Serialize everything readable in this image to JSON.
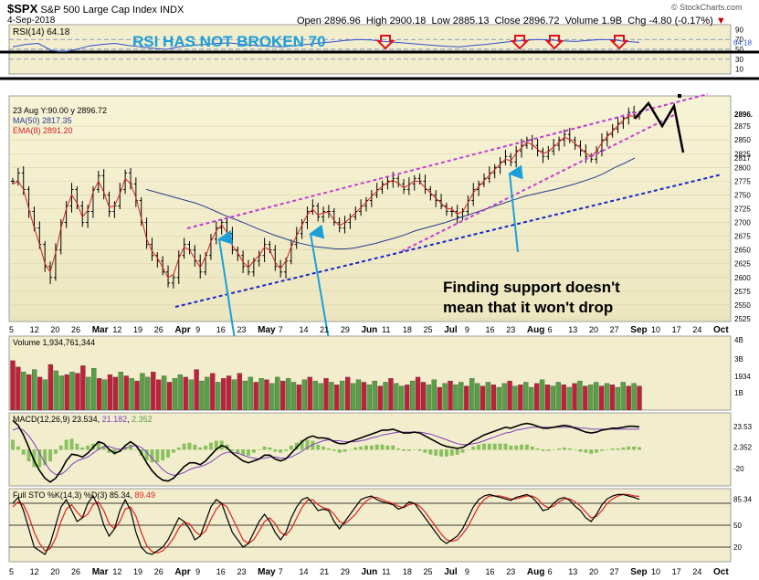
{
  "header": {
    "symbol": "$SPX",
    "name": "S&P 500 Large Cap Index",
    "exchange": "INDX",
    "date": "4-Sep-2018",
    "open_label": "Open",
    "open": "2896.96",
    "high_label": "High",
    "high": "2900.18",
    "low_label": "Low",
    "low": "2885.13",
    "close_label": "Close",
    "close": "2896.72",
    "volume_label": "Volume",
    "volume": "1.9B",
    "chg_label": "Chg",
    "chg": "-4.80 (-0.17%)",
    "chg_arrow": "▼",
    "watermark": "© StockCharts.com"
  },
  "colors": {
    "panel_bg": "#f2edcc",
    "price_bg_top": "#f7f3d6",
    "price_bg_bottom": "#ece6c0",
    "up": "#58a046",
    "down": "#c2203a",
    "ma50": "#2b3c8c",
    "ema8": "#d22222",
    "annotation_blue": "#1a9fd8",
    "annotation_red": "#e0101a",
    "channel_magenta": "#c040d0",
    "channel_blue": "#1a28c8",
    "rsi_line": "#3050d0",
    "macd_line": "#000000",
    "macd_signal": "#8040c0",
    "macd_hist": "#8ac060",
    "sto_k": "#000000",
    "sto_d": "#e02020"
  },
  "chart_data": {
    "type": "line",
    "x_axis": {
      "type": "date",
      "ticks": [
        "5",
        "12",
        "20",
        "26",
        "Mar",
        "12",
        "19",
        "26",
        "Apr",
        "9",
        "16",
        "23",
        "May",
        "7",
        "14",
        "21",
        "29",
        "Jun",
        "11",
        "18",
        "25",
        "Jul",
        "9",
        "16",
        "23",
        "Aug",
        "6",
        "13",
        "20",
        "27",
        "Sep",
        "10",
        "17",
        "24",
        "Oct"
      ]
    },
    "rsi": {
      "label": "RSI(14)",
      "value": "64.18",
      "ylim": [
        0,
        100
      ],
      "ticks": [
        "90",
        "70",
        "50",
        "30",
        "10"
      ],
      "value_label": "64.18",
      "series": [
        55,
        60,
        62,
        48,
        45,
        50,
        57,
        60,
        62,
        58,
        55,
        52,
        50,
        55,
        58,
        60,
        62,
        63,
        60,
        58,
        56,
        55,
        57,
        60,
        63,
        65,
        68,
        70,
        69,
        66,
        64,
        62,
        60,
        58,
        56,
        55,
        58,
        60,
        63,
        66,
        68,
        70,
        69,
        67,
        66,
        68,
        70,
        69,
        66,
        64
      ]
    },
    "price": {
      "label_date": "23 Aug Y:90.00 y",
      "label_price": "2896.72",
      "ma_label": "MA(50) 2817.35",
      "ema_label": "EMA(8) 2891.20",
      "ylim": [
        2520,
        2930
      ],
      "ticks": [
        "2896.",
        "2875",
        "2850",
        "2825",
        "2817",
        "2800",
        "2775",
        "2750",
        "2725",
        "2700",
        "2675",
        "2650",
        "2625",
        "2600",
        "2575",
        "2550",
        "2525"
      ],
      "closes": [
        2775,
        2790,
        2760,
        2720,
        2690,
        2660,
        2620,
        2600,
        2650,
        2700,
        2730,
        2760,
        2730,
        2700,
        2720,
        2760,
        2785,
        2750,
        2720,
        2730,
        2760,
        2790,
        2770,
        2740,
        2700,
        2660,
        2640,
        2630,
        2610,
        2590,
        2600,
        2640,
        2660,
        2650,
        2630,
        2610,
        2640,
        2670,
        2690,
        2700,
        2680,
        2650,
        2640,
        2620,
        2610,
        2630,
        2640,
        2660,
        2650,
        2620,
        2610,
        2630,
        2660,
        2680,
        2700,
        2720,
        2730,
        2710,
        2720,
        2720,
        2700,
        2690,
        2700,
        2710,
        2720,
        2730,
        2740,
        2750,
        2760,
        2770,
        2775,
        2780,
        2770,
        2760,
        2770,
        2780,
        2775,
        2760,
        2750,
        2740,
        2730,
        2720,
        2720,
        2710,
        2720,
        2740,
        2760,
        2770,
        2780,
        2790,
        2800,
        2810,
        2820,
        2810,
        2830,
        2840,
        2850,
        2840,
        2830,
        2820,
        2830,
        2840,
        2850,
        2860,
        2850,
        2840,
        2830,
        2820,
        2815,
        2830,
        2850,
        2860,
        2870,
        2880,
        2890,
        2900,
        2895,
        2897
      ],
      "ma50": [
        2760,
        2755,
        2750,
        2745,
        2740,
        2735,
        2728,
        2720,
        2712,
        2705,
        2698,
        2690,
        2683,
        2676,
        2670,
        2664,
        2660,
        2656,
        2654,
        2652,
        2652,
        2654,
        2658,
        2662,
        2667,
        2672,
        2678,
        2685,
        2690,
        2695,
        2700,
        2706,
        2712,
        2718,
        2724,
        2730,
        2736,
        2742,
        2748,
        2752,
        2756,
        2760,
        2765,
        2770,
        2776,
        2782,
        2790,
        2800,
        2808,
        2817
      ],
      "ema8": [
        2770,
        2775,
        2760,
        2725,
        2690,
        2660,
        2625,
        2610,
        2645,
        2690,
        2725,
        2750,
        2735,
        2710,
        2722,
        2755,
        2775,
        2755,
        2728,
        2730,
        2752,
        2780,
        2770,
        2745,
        2708,
        2670,
        2648,
        2636,
        2618,
        2600,
        2605,
        2635,
        2655,
        2650,
        2634,
        2618,
        2638,
        2665,
        2685,
        2696,
        2682,
        2658,
        2645,
        2628,
        2618,
        2630,
        2640,
        2655,
        2650,
        2628,
        2616,
        2630,
        2656,
        2676,
        2695,
        2714,
        2724,
        2713,
        2718,
        2719,
        2704,
        2694,
        2700,
        2708,
        2717,
        2727,
        2737,
        2747,
        2757,
        2766,
        2772,
        2777,
        2771,
        2763,
        2768,
        2776,
        2774,
        2763,
        2754,
        2744,
        2735,
        2726,
        2724,
        2715,
        2720,
        2736,
        2754,
        2765,
        2776,
        2786,
        2796,
        2806,
        2815,
        2812,
        2826,
        2836,
        2846,
        2841,
        2833,
        2825,
        2829,
        2837,
        2846,
        2855,
        2851,
        2843,
        2835,
        2826,
        2820,
        2829,
        2845,
        2856,
        2866,
        2876,
        2886,
        2894,
        2893,
        2891
      ]
    },
    "volume": {
      "label": "Volume 1,934,761,344",
      "ticks": [
        "4B",
        "3B",
        "1934",
        "1B"
      ],
      "ylim": [
        0,
        4.2
      ],
      "values": [
        3.9,
        3.4,
        3.0,
        2.8,
        3.2,
        2.6,
        2.4,
        3.6,
        3.1,
        2.7,
        2.8,
        3.0,
        2.9,
        3.5,
        2.6,
        3.3,
        2.5,
        2.4,
        2.8,
        2.6,
        3.0,
        2.7,
        2.5,
        2.3,
        2.9,
        2.6,
        3.0,
        2.4,
        2.7,
        2.2,
        2.5,
        2.8,
        2.6,
        2.4,
        3.2,
        2.3,
        2.6,
        2.9,
        2.2,
        2.5,
        2.7,
        2.4,
        2.9,
        2.3,
        2.6,
        2.2,
        2.5,
        2.4,
        2.1,
        2.6,
        2.3,
        2.5,
        2.2,
        2.0,
        2.4,
        2.6,
        2.3,
        2.1,
        2.5,
        2.2,
        2.0,
        2.3,
        2.6,
        2.1,
        2.4,
        2.2,
        2.0,
        2.3,
        1.9,
        2.2,
        2.5,
        2.1,
        1.9,
        2.0,
        2.3,
        2.6,
        2.2,
        2.0,
        2.4,
        1.8,
        2.1,
        2.3,
        2.0,
        2.2,
        1.9,
        2.5,
        2.1,
        1.9,
        2.2,
        2.0,
        1.8,
        2.1,
        2.3,
        1.9,
        2.0,
        2.2,
        1.8,
        2.1,
        2.4,
        2.0,
        1.9,
        2.2,
        2.0,
        1.8,
        2.1,
        2.3,
        1.9,
        2.0,
        2.2,
        1.9,
        2.1,
        2.0,
        1.8,
        2.2,
        1.9,
        2.1,
        1.9
      ],
      "up_flags": [
        0,
        0,
        1,
        0,
        1,
        0,
        1,
        0,
        1,
        1,
        0,
        1,
        0,
        0,
        1,
        1,
        0,
        1,
        0,
        0,
        1,
        0,
        1,
        0,
        1,
        1,
        0,
        0,
        1,
        0,
        1,
        1,
        0,
        1,
        0,
        1,
        1,
        0,
        1,
        0,
        0,
        1,
        0,
        1,
        1,
        0,
        1,
        0,
        1,
        1,
        0,
        1,
        1,
        0,
        1,
        0,
        1,
        1,
        0,
        1,
        0,
        1,
        0,
        1,
        1,
        0,
        1,
        1,
        0,
        1,
        0,
        1,
        1,
        0,
        1,
        0,
        0,
        1,
        1,
        0,
        1,
        0,
        1,
        1,
        0,
        1,
        1,
        0,
        1,
        0,
        1,
        1,
        0,
        1,
        0,
        1,
        1,
        0,
        1,
        0,
        1,
        1,
        0,
        1,
        0,
        1,
        0,
        1,
        1,
        0,
        1,
        0,
        1,
        1,
        0,
        1,
        0
      ]
    },
    "macd": {
      "label": "MACD(12,26,9)",
      "macd": "23.534",
      "signal": "21.182",
      "hist": "2.352",
      "ticks": [
        "23.53",
        "2.352",
        "-20"
      ],
      "ylim": [
        -38,
        38
      ],
      "macd_series": [
        30,
        25,
        15,
        2,
        -12,
        -22,
        -30,
        -34,
        -30,
        -22,
        -12,
        -5,
        -6,
        -8,
        -4,
        2,
        8,
        6,
        0,
        -4,
        -2,
        4,
        8,
        4,
        -4,
        -14,
        -22,
        -28,
        -32,
        -33,
        -30,
        -24,
        -18,
        -14,
        -14,
        -16,
        -12,
        -6,
        0,
        4,
        2,
        -4,
        -8,
        -12,
        -14,
        -12,
        -10,
        -6,
        -6,
        -10,
        -12,
        -10,
        -4,
        2,
        8,
        12,
        14,
        12,
        12,
        11,
        8,
        6,
        6,
        8,
        10,
        12,
        14,
        16,
        18,
        20,
        20,
        21,
        19,
        17,
        17,
        18,
        17,
        14,
        11,
        8,
        5,
        3,
        2,
        1,
        2,
        5,
        9,
        12,
        15,
        17,
        19,
        21,
        23,
        22,
        24,
        26,
        27,
        26,
        24,
        22,
        22,
        23,
        24,
        25,
        24,
        22,
        20,
        18,
        17,
        18,
        20,
        21,
        22,
        22,
        23,
        24,
        24,
        23.5
      ],
      "signal_series": [
        20,
        22,
        20,
        14,
        6,
        -4,
        -14,
        -22,
        -26,
        -26,
        -22,
        -16,
        -12,
        -10,
        -8,
        -4,
        0,
        3,
        3,
        1,
        0,
        1,
        3,
        4,
        2,
        -3,
        -9,
        -15,
        -21,
        -25,
        -27,
        -26,
        -24,
        -21,
        -19,
        -18,
        -16,
        -13,
        -9,
        -5,
        -3,
        -3,
        -4,
        -6,
        -8,
        -9,
        -10,
        -9,
        -8,
        -8,
        -9,
        -9,
        -8,
        -5,
        -2,
        2,
        5,
        7,
        9,
        10,
        9,
        9,
        8,
        8,
        8,
        9,
        10,
        12,
        13,
        15,
        16,
        17,
        18,
        18,
        18,
        18,
        18,
        17,
        16,
        14,
        12,
        10,
        8,
        6,
        5,
        5,
        6,
        7,
        9,
        11,
        13,
        15,
        17,
        18,
        20,
        21,
        22,
        23,
        23,
        23,
        23,
        23,
        23,
        23,
        23,
        23,
        22,
        22,
        21,
        21,
        21,
        21,
        21,
        21,
        21,
        21,
        21,
        21.2
      ],
      "hist_series": [
        10,
        3,
        -5,
        -12,
        -18,
        -18,
        -16,
        -12,
        -4,
        4,
        10,
        11,
        6,
        2,
        4,
        6,
        8,
        3,
        -3,
        -5,
        -2,
        3,
        5,
        0,
        -6,
        -11,
        -13,
        -13,
        -11,
        -8,
        -3,
        2,
        6,
        7,
        5,
        2,
        4,
        7,
        9,
        9,
        5,
        -1,
        -4,
        -6,
        -6,
        -3,
        0,
        3,
        2,
        -2,
        -3,
        -1,
        4,
        7,
        10,
        10,
        9,
        5,
        3,
        1,
        -1,
        -3,
        -2,
        0,
        2,
        3,
        4,
        4,
        5,
        5,
        4,
        4,
        1,
        -1,
        -1,
        0,
        -1,
        -3,
        -5,
        -6,
        -7,
        -7,
        -6,
        -5,
        -3,
        0,
        3,
        5,
        6,
        6,
        6,
        6,
        6,
        4,
        4,
        5,
        5,
        3,
        1,
        -1,
        -1,
        0,
        1,
        2,
        1,
        0,
        -2,
        -3,
        -4,
        -3,
        -1,
        0,
        1,
        1,
        2,
        3,
        3,
        2.35
      ]
    },
    "sto": {
      "label": "Full STO %K(14,3) %D(3)",
      "k": "85.34",
      "d": "89.49",
      "ticks": [
        "85.34",
        "50",
        "20"
      ],
      "ylim": [
        0,
        100
      ],
      "k_series": [
        80,
        88,
        70,
        45,
        20,
        15,
        10,
        25,
        50,
        75,
        85,
        70,
        55,
        60,
        80,
        90,
        75,
        50,
        35,
        45,
        70,
        85,
        70,
        40,
        20,
        12,
        10,
        15,
        20,
        30,
        45,
        60,
        55,
        45,
        30,
        35,
        55,
        75,
        85,
        80,
        60,
        40,
        30,
        20,
        25,
        40,
        55,
        65,
        55,
        40,
        30,
        40,
        60,
        75,
        85,
        88,
        80,
        70,
        72,
        70,
        55,
        45,
        55,
        65,
        75,
        85,
        88,
        90,
        85,
        82,
        80,
        78,
        72,
        75,
        82,
        80,
        70,
        60,
        50,
        40,
        30,
        25,
        30,
        35,
        45,
        60,
        75,
        85,
        90,
        92,
        90,
        88,
        86,
        84,
        88,
        90,
        92,
        88,
        80,
        70,
        72,
        80,
        86,
        88,
        84,
        76,
        70,
        60,
        55,
        65,
        78,
        86,
        90,
        92,
        92,
        90,
        88,
        85.34
      ],
      "d_series": [
        75,
        82,
        78,
        62,
        40,
        25,
        15,
        18,
        32,
        55,
        72,
        78,
        68,
        60,
        65,
        78,
        82,
        70,
        52,
        45,
        55,
        72,
        75,
        62,
        40,
        22,
        14,
        12,
        15,
        22,
        32,
        46,
        54,
        52,
        42,
        36,
        42,
        58,
        72,
        80,
        75,
        60,
        45,
        30,
        25,
        30,
        42,
        55,
        60,
        52,
        40,
        36,
        45,
        60,
        74,
        84,
        85,
        78,
        74,
        72,
        65,
        55,
        52,
        58,
        65,
        75,
        83,
        88,
        88,
        85,
        82,
        80,
        76,
        74,
        78,
        80,
        76,
        68,
        58,
        48,
        38,
        30,
        28,
        30,
        38,
        48,
        62,
        76,
        85,
        90,
        90,
        90,
        88,
        86,
        86,
        88,
        90,
        90,
        86,
        78,
        74,
        76,
        82,
        86,
        86,
        82,
        76,
        68,
        60,
        62,
        70,
        80,
        86,
        90,
        92,
        92,
        90,
        89.49
      ]
    }
  },
  "annotations": {
    "rsi_note": "RSI HAS NOT BROKEN  70",
    "support_note_1": "Finding support doesn't",
    "support_note_2": "mean that it won't drop"
  }
}
